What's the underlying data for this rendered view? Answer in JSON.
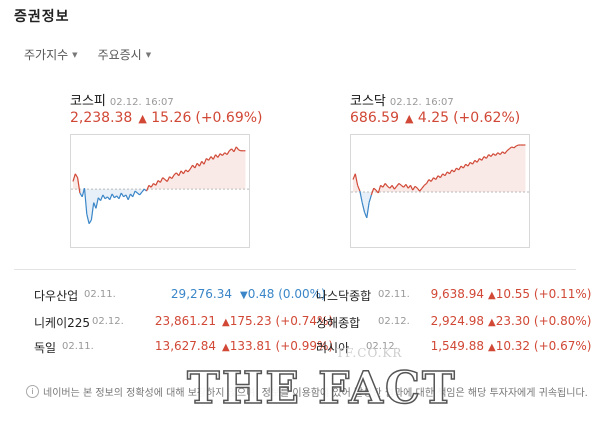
{
  "header": {
    "title": "증권정보"
  },
  "tabs": [
    {
      "label": "주가지수"
    },
    {
      "label": "주요증시"
    }
  ],
  "charts": {
    "kospi": {
      "name": "코스피",
      "time": "02.12. 16:07",
      "value": "2,238.38",
      "change": "15.26",
      "percent": "(+0.69%)",
      "direction": "up",
      "color_up": "#d14836",
      "color_down": "#3a86c8",
      "baseline": 0.54,
      "series": [
        0.62,
        0.7,
        0.66,
        0.5,
        0.46,
        0.55,
        0.28,
        0.18,
        0.22,
        0.4,
        0.34,
        0.45,
        0.42,
        0.48,
        0.44,
        0.46,
        0.43,
        0.49,
        0.45,
        0.47,
        0.44,
        0.5,
        0.46,
        0.48,
        0.43,
        0.49,
        0.46,
        0.52,
        0.5,
        0.48,
        0.51,
        0.54,
        0.52,
        0.58,
        0.56,
        0.6,
        0.58,
        0.63,
        0.61,
        0.66,
        0.64,
        0.62,
        0.67,
        0.65,
        0.69,
        0.71,
        0.68,
        0.73,
        0.7,
        0.74,
        0.72,
        0.75,
        0.79,
        0.76,
        0.81,
        0.78,
        0.83,
        0.8,
        0.86,
        0.84,
        0.88,
        0.85,
        0.9,
        0.87,
        0.91,
        0.89,
        0.92,
        0.9,
        0.94,
        0.96,
        0.93,
        0.98,
        0.95,
        0.94,
        0.94,
        0.94
      ]
    },
    "kosdaq": {
      "name": "코스닥",
      "time": "02.12. 16:07",
      "value": "686.59",
      "change": "4.25",
      "percent": "(+0.62%)",
      "direction": "up",
      "color_up": "#d14836",
      "color_down": "#3a86c8",
      "baseline": 0.51,
      "series": [
        0.64,
        0.7,
        0.58,
        0.52,
        0.4,
        0.3,
        0.24,
        0.4,
        0.48,
        0.55,
        0.53,
        0.5,
        0.58,
        0.56,
        0.6,
        0.57,
        0.55,
        0.58,
        0.54,
        0.57,
        0.6,
        0.58,
        0.56,
        0.59,
        0.55,
        0.58,
        0.53,
        0.57,
        0.55,
        0.52,
        0.55,
        0.58,
        0.6,
        0.64,
        0.62,
        0.66,
        0.64,
        0.68,
        0.66,
        0.7,
        0.68,
        0.72,
        0.7,
        0.74,
        0.72,
        0.76,
        0.74,
        0.78,
        0.76,
        0.8,
        0.78,
        0.82,
        0.8,
        0.84,
        0.82,
        0.86,
        0.84,
        0.88,
        0.86,
        0.9,
        0.88,
        0.91,
        0.89,
        0.92,
        0.9,
        0.93,
        0.91,
        0.94,
        0.96,
        0.98,
        0.97,
        0.99,
        1.0,
        1.0,
        1.0,
        1.0
      ]
    }
  },
  "indices_left": [
    {
      "name": "다우산업",
      "date": "02.11.",
      "value": "29,276.34",
      "arrow": "down",
      "change": "0.48",
      "percent": "(0.00%)",
      "color": "#3a86c8"
    },
    {
      "name": "니케이225",
      "date": "02.12.",
      "value": "23,861.21",
      "arrow": "up",
      "change": "175.23",
      "percent": "(+0.74%)",
      "color": "#d14836"
    },
    {
      "name": "독일",
      "date": "02.11.",
      "value": "13,627.84",
      "arrow": "up",
      "change": "133.81",
      "percent": "(+0.99%)",
      "color": "#d14836"
    }
  ],
  "indices_right": [
    {
      "name": "나스닥종합",
      "date": "02.11.",
      "value": "9,638.94",
      "arrow": "up",
      "change": "10.55",
      "percent": "(+0.11%)",
      "color": "#d14836"
    },
    {
      "name": "상해종합",
      "date": "02.12.",
      "value": "2,924.98",
      "arrow": "up",
      "change": "23.30",
      "percent": "(+0.80%)",
      "color": "#d14836"
    },
    {
      "name": "러시아",
      "date": "02.12.",
      "value": "1,549.88",
      "arrow": "up",
      "change": "10.32",
      "percent": "(+0.67%)",
      "color": "#d14836"
    }
  ],
  "arrows": {
    "up": "▲",
    "down": "▼"
  },
  "notice": {
    "icon": "info-icon",
    "text": "네이버는 본 정보의 정확성에 대해 보장하지 않으며, 정보를 이용함에 있어 발생한 결과에 대한 책임은 해당 투자자에게 귀속됩니다."
  },
  "watermark": {
    "main": "THE FACT",
    "sub": "TF.CO.KR"
  }
}
